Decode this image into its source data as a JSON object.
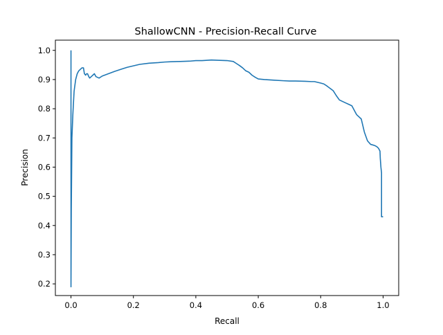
{
  "chart_data": {
    "type": "line",
    "title": "ShallowCNN - Precision-Recall Curve",
    "xlabel": "Recall",
    "ylabel": "Precision",
    "xlim": [
      -0.05,
      1.05
    ],
    "ylim": [
      0.16,
      1.035
    ],
    "grid": false,
    "line_color": "#1f77b4",
    "x_ticks": [
      {
        "v": 0.0,
        "label": "0.0"
      },
      {
        "v": 0.2,
        "label": "0.2"
      },
      {
        "v": 0.4,
        "label": "0.4"
      },
      {
        "v": 0.6,
        "label": "0.6"
      },
      {
        "v": 0.8,
        "label": "0.8"
      },
      {
        "v": 1.0,
        "label": "1.0"
      }
    ],
    "y_ticks": [
      {
        "v": 0.2,
        "label": "0.2"
      },
      {
        "v": 0.3,
        "label": "0.3"
      },
      {
        "v": 0.4,
        "label": "0.4"
      },
      {
        "v": 0.5,
        "label": "0.5"
      },
      {
        "v": 0.6,
        "label": "0.6"
      },
      {
        "v": 0.7,
        "label": "0.7"
      },
      {
        "v": 0.8,
        "label": "0.8"
      },
      {
        "v": 0.9,
        "label": "0.9"
      },
      {
        "v": 1.0,
        "label": "1.0"
      }
    ],
    "series": [
      {
        "x": [
          0.0,
          0.0,
          0.001,
          0.003,
          0.006,
          0.01,
          0.015,
          0.02,
          0.025,
          0.03,
          0.035,
          0.04,
          0.043,
          0.047,
          0.05,
          0.053,
          0.057,
          0.06,
          0.065,
          0.07,
          0.075,
          0.08,
          0.09,
          0.1,
          0.12,
          0.14,
          0.16,
          0.18,
          0.2,
          0.22,
          0.25,
          0.28,
          0.3,
          0.32,
          0.35,
          0.38,
          0.4,
          0.42,
          0.45,
          0.47,
          0.5,
          0.52,
          0.53,
          0.54,
          0.55,
          0.56,
          0.57,
          0.58,
          0.59,
          0.6,
          0.62,
          0.65,
          0.68,
          0.7,
          0.72,
          0.75,
          0.77,
          0.78,
          0.8,
          0.81,
          0.82,
          0.83,
          0.84,
          0.85,
          0.86,
          0.87,
          0.88,
          0.89,
          0.9,
          0.905,
          0.91,
          0.915,
          0.92,
          0.93,
          0.94,
          0.95,
          0.96,
          0.97,
          0.975,
          0.98,
          0.985,
          0.99,
          0.991,
          0.993,
          0.995,
          0.995,
          1.0
        ],
        "y": [
          1.0,
          0.19,
          0.45,
          0.7,
          0.78,
          0.86,
          0.9,
          0.92,
          0.93,
          0.935,
          0.94,
          0.94,
          0.92,
          0.915,
          0.92,
          0.92,
          0.91,
          0.905,
          0.91,
          0.915,
          0.92,
          0.91,
          0.905,
          0.912,
          0.92,
          0.928,
          0.935,
          0.942,
          0.947,
          0.952,
          0.956,
          0.958,
          0.96,
          0.961,
          0.962,
          0.963,
          0.965,
          0.965,
          0.967,
          0.966,
          0.965,
          0.962,
          0.955,
          0.948,
          0.94,
          0.93,
          0.925,
          0.915,
          0.908,
          0.902,
          0.9,
          0.898,
          0.896,
          0.895,
          0.895,
          0.894,
          0.893,
          0.893,
          0.888,
          0.885,
          0.878,
          0.87,
          0.862,
          0.845,
          0.83,
          0.825,
          0.82,
          0.815,
          0.81,
          0.8,
          0.79,
          0.78,
          0.775,
          0.765,
          0.72,
          0.69,
          0.678,
          0.675,
          0.673,
          0.67,
          0.665,
          0.655,
          0.63,
          0.6,
          0.58,
          0.43,
          0.43
        ]
      }
    ]
  }
}
